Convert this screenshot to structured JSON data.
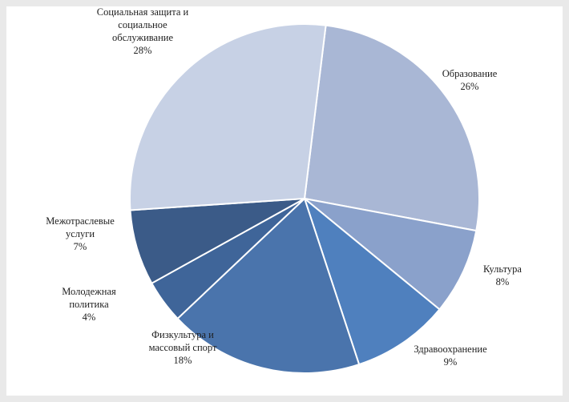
{
  "chart_data": {
    "type": "pie",
    "title": "",
    "start_angle_deg": 7,
    "direction": "clockwise",
    "slices": [
      {
        "label_lines": [
          "Образование",
          "26%"
        ],
        "value": 26,
        "color": "#a9b7d5"
      },
      {
        "label_lines": [
          "Культура",
          "8%"
        ],
        "value": 8,
        "color": "#8aa1cb"
      },
      {
        "label_lines": [
          "Здравоохранение",
          "9%"
        ],
        "value": 9,
        "color": "#4f80be"
      },
      {
        "label_lines": [
          "Физкультура и",
          "массовый спорт",
          "18%"
        ],
        "value": 18,
        "color": "#4a74ac"
      },
      {
        "label_lines": [
          "Молодежная",
          "политика",
          "4%"
        ],
        "value": 4,
        "color": "#3f6599"
      },
      {
        "label_lines": [
          "Межотраслевые",
          "услуги",
          "7%"
        ],
        "value": 7,
        "color": "#3b5b88"
      },
      {
        "label_lines": [
          "Социальная защита и",
          "социальное",
          "обслуживание",
          "28%"
        ],
        "value": 28,
        "color": "#c7d1e5"
      }
    ]
  }
}
